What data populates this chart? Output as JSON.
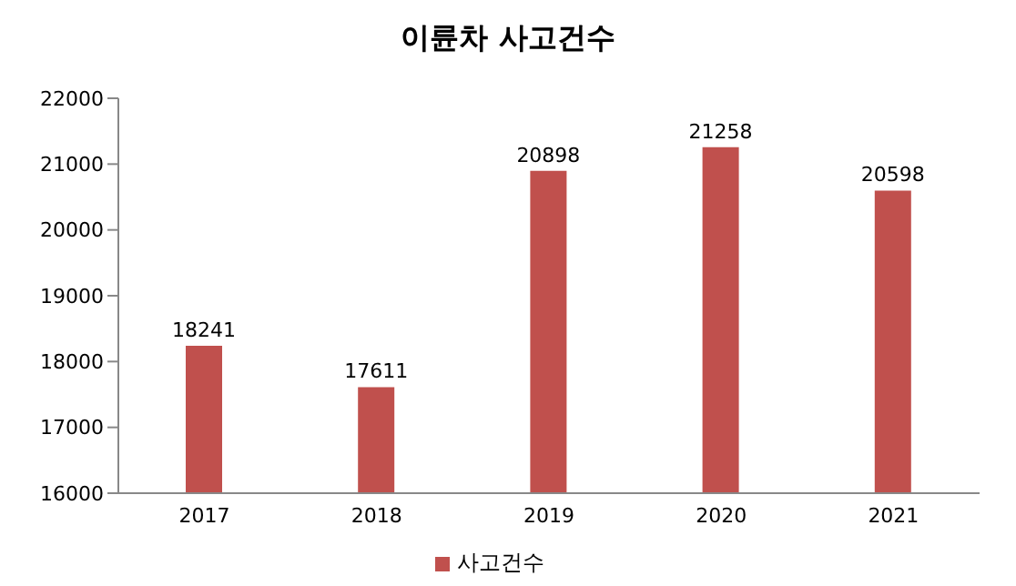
{
  "chart_data": {
    "type": "bar",
    "title": "이륜차 사고건수",
    "categories": [
      "2017",
      "2018",
      "2019",
      "2020",
      "2021"
    ],
    "series": [
      {
        "name": "사고건수",
        "color": "#c0504d",
        "values": [
          18241,
          17611,
          20898,
          21258,
          20598
        ]
      }
    ],
    "ylim": [
      16000,
      22000
    ],
    "yticks": [
      16000,
      17000,
      18000,
      19000,
      20000,
      21000,
      22000
    ],
    "data_labels": true,
    "grid": false,
    "legend": "bottom"
  }
}
